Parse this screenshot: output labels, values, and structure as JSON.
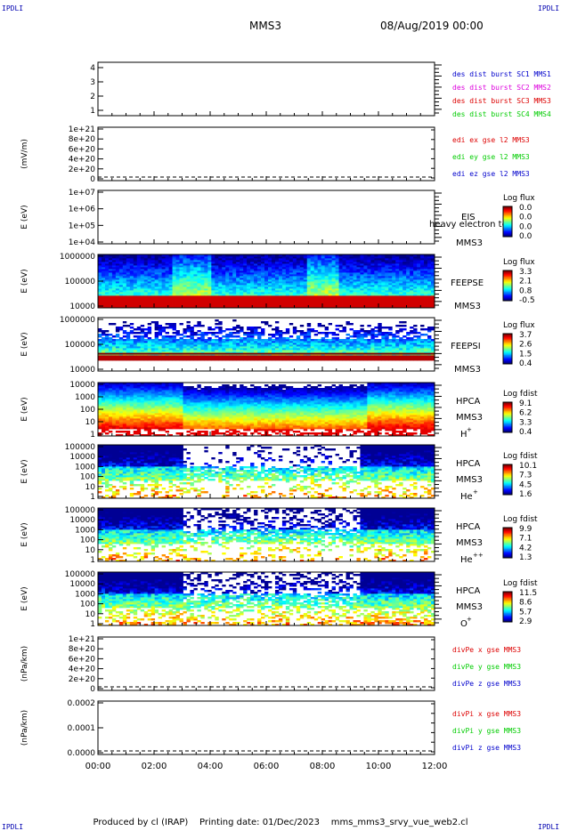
{
  "header": {
    "corner_label": "IPDLI",
    "title": "MMS3",
    "datetime": "08/Aug/2019 00:00"
  },
  "footer": {
    "producer": "Produced by cl (IRAP)",
    "printing_date": "Printing date: 01/Dec/2023",
    "script_name": "mms_mms3_srvy_vue_web2.cl"
  },
  "colors": {
    "line_red": "#dd0000",
    "line_green": "#00cc00",
    "line_blue": "#0000cc",
    "line_magenta": "#dd00dd"
  },
  "chart_data": {
    "type": "heatmap",
    "x_tick_labels": [
      "00:00",
      "02:00",
      "04:00",
      "06:00",
      "08:00",
      "10:00",
      "12:00"
    ],
    "xlim_hours": [
      0,
      12
    ],
    "panels": [
      {
        "id": "sc-config",
        "type": "line",
        "ylabel": "",
        "yticks": [
          "4",
          "3",
          "2",
          "1"
        ],
        "legend": [
          {
            "text": "des dist burst SC1 MMS1",
            "color": "#0000cc"
          },
          {
            "text": "des dist burst SC2 MMS2",
            "color": "#dd00dd"
          },
          {
            "text": "des dist burst SC3 MMS3",
            "color": "#dd0000"
          },
          {
            "text": "des dist burst SC4 MMS4",
            "color": "#00cc00"
          }
        ]
      },
      {
        "id": "edi-e",
        "type": "line",
        "ylabel": "(mV/m)",
        "yticks": [
          "1e+21",
          "8e+20",
          "6e+20",
          "4e+20",
          "2e+20",
          "0"
        ],
        "legend": [
          {
            "text": "edi ex gse l2 MMS3",
            "color": "#dd0000"
          },
          {
            "text": "edi ey gse l2 MMS3",
            "color": "#00cc00"
          },
          {
            "text": "edi ez gse l2 MMS3",
            "color": "#0000cc"
          }
        ]
      },
      {
        "id": "eis",
        "type": "heatmap",
        "ylabel": "E (eV)",
        "yticks": [
          "1e+07",
          "1e+06",
          "1e+05",
          "1e+04"
        ],
        "instrument": "EIS",
        "overlay_text": "heavy electron to",
        "spacecraft": "MMS3",
        "species": "",
        "colorbar": {
          "title": "Log flux",
          "ticks": [
            "0.0",
            "0.0",
            "0.0",
            "0.0"
          ]
        }
      },
      {
        "id": "feeps-e",
        "type": "heatmap",
        "ylabel": "E (eV)",
        "yticks": [
          "1000000",
          "100000",
          "10000"
        ],
        "instrument": "FEEPSE",
        "spacecraft": "MMS3",
        "species": "",
        "colorbar": {
          "title": "Log flux",
          "ticks": [
            "3.3",
            "2.1",
            "0.8",
            "-0.5"
          ]
        }
      },
      {
        "id": "feeps-i",
        "type": "heatmap",
        "ylabel": "E (eV)",
        "yticks": [
          "1000000",
          "100000",
          "10000"
        ],
        "instrument": "FEEPSI",
        "spacecraft": "MMS3",
        "species": "",
        "colorbar": {
          "title": "Log flux",
          "ticks": [
            "3.7",
            "2.6",
            "1.5",
            "0.4"
          ]
        }
      },
      {
        "id": "hpca-h",
        "type": "heatmap",
        "ylabel": "E (eV)",
        "yticks": [
          "10000",
          "1000",
          "100",
          "10",
          "1"
        ],
        "instrument": "HPCA",
        "spacecraft": "MMS3",
        "species": "H",
        "species_sup": "+",
        "colorbar": {
          "title": "Log fdist",
          "ticks": [
            "9.1",
            "6.2",
            "3.3",
            "0.4"
          ]
        }
      },
      {
        "id": "hpca-he1",
        "type": "heatmap",
        "ylabel": "E (eV)",
        "yticks": [
          "100000",
          "10000",
          "1000",
          "100",
          "10",
          "1"
        ],
        "instrument": "HPCA",
        "spacecraft": "MMS3",
        "species": "He",
        "species_sup": "+",
        "colorbar": {
          "title": "Log fdist",
          "ticks": [
            "10.1",
            "7.3",
            "4.5",
            "1.6"
          ]
        }
      },
      {
        "id": "hpca-he2",
        "type": "heatmap",
        "ylabel": "E (eV)",
        "yticks": [
          "100000",
          "10000",
          "1000",
          "100",
          "10",
          "1"
        ],
        "instrument": "HPCA",
        "spacecraft": "MMS3",
        "species": "He",
        "species_sup": "++",
        "colorbar": {
          "title": "Log fdist",
          "ticks": [
            "9.9",
            "7.1",
            "4.2",
            "1.3"
          ]
        }
      },
      {
        "id": "hpca-o",
        "type": "heatmap",
        "ylabel": "E (eV)",
        "yticks": [
          "100000",
          "10000",
          "1000",
          "100",
          "10",
          "1"
        ],
        "instrument": "HPCA",
        "spacecraft": "MMS3",
        "species": "O",
        "species_sup": "+",
        "colorbar": {
          "title": "Log fdist",
          "ticks": [
            "11.5",
            "8.6",
            "5.7",
            "2.9"
          ]
        }
      },
      {
        "id": "divpe",
        "type": "line",
        "ylabel": "(nPa/km)",
        "yticks": [
          "1e+21",
          "8e+20",
          "6e+20",
          "4e+20",
          "2e+20",
          "0"
        ],
        "legend": [
          {
            "text": "divPe x gse MMS3",
            "color": "#dd0000"
          },
          {
            "text": "divPe y gse MMS3",
            "color": "#00cc00"
          },
          {
            "text": "divPe z gse MMS3",
            "color": "#0000cc"
          }
        ]
      },
      {
        "id": "divpi",
        "type": "line",
        "ylabel": "(nPa/km)",
        "yticks": [
          "0.0002",
          "0.0001",
          "0.0000"
        ],
        "legend": [
          {
            "text": "divPi x gse MMS3",
            "color": "#dd0000"
          },
          {
            "text": "divPi y gse MMS3",
            "color": "#00cc00"
          },
          {
            "text": "divPi z gse MMS3",
            "color": "#0000cc"
          }
        ]
      }
    ]
  }
}
